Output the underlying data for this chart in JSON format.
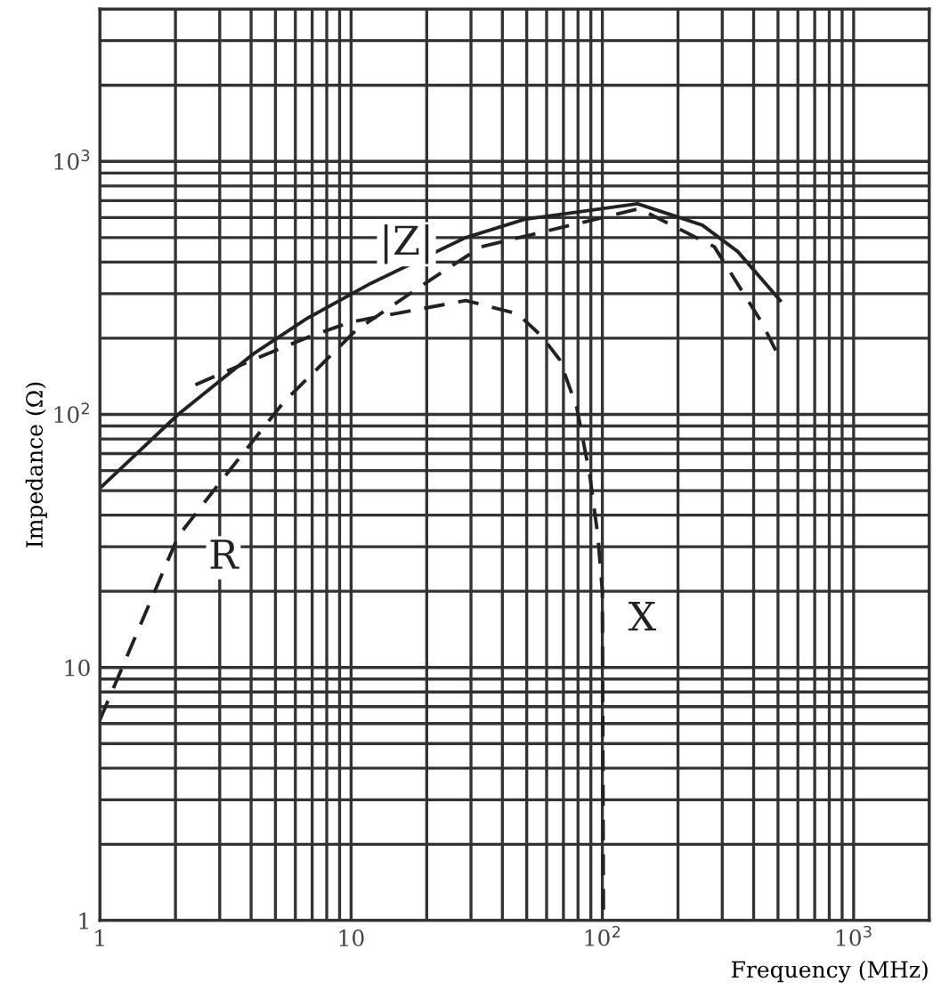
{
  "chart_data": {
    "type": "line",
    "xlabel": "Frequency (MHz)",
    "ylabel": "Impedance (Ω)",
    "log": "xy",
    "grid": true,
    "xlim": [
      1,
      2000
    ],
    "ylim": [
      1,
      4000
    ],
    "xticks": [
      1,
      10,
      {
        "value": 100,
        "label": "10$^{2}$"
      },
      {
        "value": 1000,
        "label": "10$^{3}$"
      }
    ],
    "yticks": [
      1,
      10,
      {
        "value": 100,
        "label": "10$^{2}$"
      },
      {
        "value": 1000,
        "label": "10$^{3}$"
      }
    ],
    "series": [
      {
        "name": "|Z|",
        "color": "#222222",
        "line_style": "solid",
        "x": [
          1,
          2.05,
          4.1,
          6.7,
          12,
          28.6,
          49,
          138,
          250,
          346,
          510
        ],
        "values": [
          51,
          100,
          174,
          240,
          330,
          500,
          590,
          680,
          560,
          440,
          282
        ]
      },
      {
        "name": "R",
        "color": "#222222",
        "line_style": "dashed",
        "x": [
          1,
          2.05,
          2.97,
          5.4,
          10.4,
          20,
          33,
          140,
          279,
          433,
          510
        ],
        "values": [
          6.2,
          33,
          53,
          112,
          214,
          333,
          460,
          650,
          460,
          229,
          165
        ]
      },
      {
        "name": "X",
        "color": "#222222",
        "line_style": "dashed",
        "x": [
          2.4,
          4.1,
          7,
          10,
          28.6,
          46,
          57,
          67.5,
          79,
          89,
          96,
          100,
          101
        ],
        "values": [
          131,
          165,
          205,
          232,
          282,
          250,
          205,
          165,
          107,
          58,
          33,
          20,
          1
        ]
      }
    ]
  }
}
